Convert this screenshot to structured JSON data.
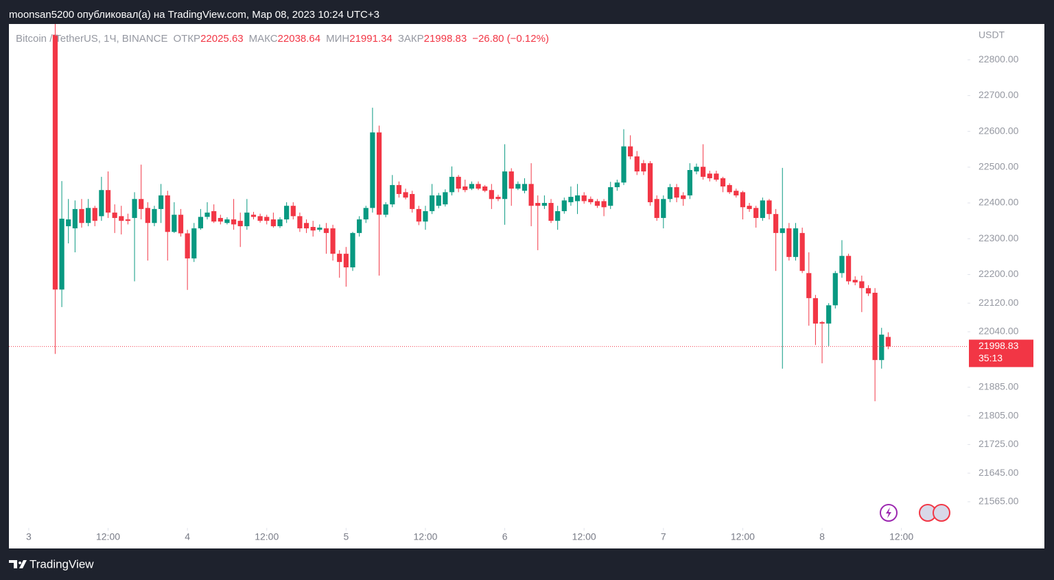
{
  "header": {
    "text": "moonsan5200 опубликовал(а) на TradingView.com, Мар 08, 2023 10:24 UTC+3"
  },
  "footer": {
    "brand": "TradingView"
  },
  "chart_data": {
    "type": "candlestick",
    "title": "Bitcoin / TetherUS, 1Ч, BINANCE",
    "ohlc_labels": {
      "open": "ОТКР",
      "high": "МАКС",
      "low": "МИН",
      "close": "ЗАКР"
    },
    "change_label": "−26.80 (−0.12%)",
    "y_unit": "USDT",
    "countdown": "35:13",
    "up_color": "#089981",
    "down_color": "#f23645",
    "xlim": [
      -3,
      142
    ],
    "xticks": [
      {
        "value": 0,
        "label": "3"
      },
      {
        "value": 12,
        "label": "12:00"
      },
      {
        "value": 24,
        "label": "4"
      },
      {
        "value": 36,
        "label": "12:00"
      },
      {
        "value": 48,
        "label": "5"
      },
      {
        "value": 60,
        "label": "12:00"
      },
      {
        "value": 72,
        "label": "6"
      },
      {
        "value": 84,
        "label": "12:00"
      },
      {
        "value": 96,
        "label": "7"
      },
      {
        "value": 108,
        "label": "12:00"
      },
      {
        "value": 120,
        "label": "8"
      },
      {
        "value": 132,
        "label": "12:00"
      }
    ],
    "ylim": [
      21492,
      22900
    ],
    "yticks": [
      {
        "value": 22800,
        "label": "22800.00"
      },
      {
        "value": 22700,
        "label": "22700.00"
      },
      {
        "value": 22600,
        "label": "22600.00"
      },
      {
        "value": 22500,
        "label": "22500.00"
      },
      {
        "value": 22400,
        "label": "22400.00"
      },
      {
        "value": 22300,
        "label": "22300.00"
      },
      {
        "value": 22200,
        "label": "22200.00"
      },
      {
        "value": 22120,
        "label": "22120.00"
      },
      {
        "value": 22040,
        "label": "22040.00"
      },
      {
        "value": 21885,
        "label": "21885.00"
      },
      {
        "value": 21805,
        "label": "21805.00"
      },
      {
        "value": 21725,
        "label": "21725.00"
      },
      {
        "value": 21645,
        "label": "21645.00"
      },
      {
        "value": 21565,
        "label": "21565.00"
      }
    ],
    "x": [
      4,
      5,
      6,
      7,
      8,
      9,
      10,
      11,
      12,
      13,
      14,
      15,
      16,
      17,
      18,
      19,
      20,
      21,
      22,
      23,
      24,
      25,
      26,
      27,
      28,
      29,
      30,
      31,
      32,
      33,
      34,
      35,
      36,
      37,
      38,
      39,
      40,
      41,
      42,
      43,
      44,
      45,
      46,
      47,
      48,
      49,
      50,
      51,
      52,
      53,
      54,
      55,
      56,
      57,
      58,
      59,
      60,
      61,
      62,
      63,
      64,
      65,
      66,
      67,
      68,
      69,
      70,
      71,
      72,
      73,
      74,
      75,
      76,
      77,
      78,
      79,
      80,
      81,
      82,
      83,
      84,
      85,
      86,
      87,
      88,
      89,
      90,
      91,
      92,
      93,
      94,
      95,
      96,
      97,
      98,
      99,
      100,
      101,
      102,
      103,
      104,
      105,
      106,
      107,
      108,
      109,
      110,
      111,
      112,
      113,
      114,
      115,
      116,
      117,
      118,
      119,
      120,
      121,
      122,
      123,
      124,
      125,
      126,
      127,
      128,
      129,
      130
    ],
    "open": [
      22870,
      22158,
      22335,
      22329,
      22383,
      22344,
      22386,
      22363,
      22436,
      22373,
      22363,
      22354,
      22358,
      22411,
      22386,
      22344,
      22383,
      22421,
      22319,
      22367,
      22315,
      22245,
      22329,
      22361,
      22377,
      22358,
      22344,
      22354,
      22350,
      22335,
      22367,
      22363,
      22361,
      22354,
      22335,
      22354,
      22392,
      22363,
      22344,
      22333,
      22325,
      22329,
      22329,
      22258,
      22258,
      22220,
      22316,
      22354,
      22386,
      22597,
      22367,
      22396,
      22450,
      22430,
      22425,
      22383,
      22348,
      22377,
      22392,
      22396,
      22430,
      22473,
      22446,
      22440,
      22453,
      22446,
      22436,
      22417,
      22411,
      22488,
      22440,
      22434,
      22453,
      22400,
      22392,
      22400,
      22350,
      22377,
      22402,
      22405,
      22421,
      22411,
      22405,
      22405,
      22392,
      22444,
      22457,
      22558,
      22530,
      22511,
      22511,
      22411,
      22358,
      22411,
      22444,
      22421,
      22421,
      22488,
      22501,
      22482,
      22482,
      22469,
      22450,
      22434,
      22430,
      22392,
      22386,
      22358,
      22407,
      22369,
      22316,
      22329,
      22249,
      22316,
      22204,
      22134,
      22067,
      22063,
      22114,
      22204,
      22252,
      22185,
      22181,
      22162,
      22149,
      21961,
      22025.63
    ],
    "high": [
      22950,
      22461,
      22411,
      22407,
      22411,
      22411,
      22392,
      22473,
      22488,
      22396,
      22392,
      22370,
      22430,
      22507,
      22402,
      22392,
      22453,
      22434,
      22402,
      22383,
      22325,
      22344,
      22383,
      22402,
      22396,
      22367,
      22360,
      22411,
      22373,
      22411,
      22375,
      22370,
      22367,
      22373,
      22360,
      22402,
      22402,
      22373,
      22354,
      22350,
      22340,
      22344,
      22339,
      22268,
      22277,
      22319,
      22363,
      22392,
      22666,
      22616,
      22402,
      22478,
      22460,
      22440,
      22434,
      22392,
      22392,
      22453,
      22428,
      22438,
      22502,
      22478,
      22465,
      22460,
      22460,
      22450,
      22453,
      22423,
      22564,
      22497,
      22460,
      22469,
      22511,
      22421,
      22421,
      22411,
      22392,
      22415,
      22446,
      22453,
      22430,
      22418,
      22411,
      22411,
      22459,
      22465,
      22606,
      22589,
      22545,
      22520,
      22517,
      22421,
      22421,
      22453,
      22453,
      22430,
      22511,
      22510,
      22564,
      22490,
      22490,
      22473,
      22455,
      22440,
      22434,
      22400,
      22392,
      22415,
      22411,
      22383,
      22498,
      22344,
      22344,
      22331,
      22262,
      22143,
      22070,
      22120,
      22210,
      22296,
      22258,
      22195,
      22197,
      22170,
      22162,
      22051,
      22038.64
    ],
    "low": [
      21978,
      22109,
      22287,
      22262,
      22331,
      22335,
      22335,
      22350,
      22358,
      22316,
      22312,
      22340,
      22181,
      22354,
      22239,
      22335,
      22344,
      22239,
      22316,
      22306,
      22157,
      22235,
      22325,
      22354,
      22344,
      22340,
      22340,
      22325,
      22277,
      22325,
      22354,
      22345,
      22340,
      22331,
      22330,
      22344,
      22354,
      22319,
      22316,
      22306,
      22320,
      22258,
      22239,
      22191,
      22166,
      22210,
      22306,
      22344,
      22373,
      22197,
      22360,
      22388,
      22415,
      22410,
      22373,
      22338,
      22325,
      22369,
      22385,
      22390,
      22421,
      22430,
      22430,
      22436,
      22436,
      22430,
      22383,
      22405,
      22339,
      22392,
      22436,
      22427,
      22335,
      22268,
      22383,
      22344,
      22325,
      22370,
      22392,
      22369,
      22398,
      22396,
      22386,
      22363,
      22383,
      22434,
      22450,
      22522,
      22478,
      22478,
      22392,
      22350,
      22329,
      22402,
      22402,
      22392,
      22411,
      22480,
      22465,
      22460,
      22460,
      22430,
      22425,
      22415,
      22354,
      22375,
      22331,
      22350,
      22354,
      22210,
      21937,
      22239,
      22239,
      22204,
      22057,
      22003,
      21952,
      22000,
      22105,
      22191,
      22172,
      22170,
      22095,
      22140,
      21846,
      21937,
      21991.34
    ],
    "close": [
      22158,
      22356,
      22354,
      22383,
      22344,
      22386,
      22350,
      22436,
      22373,
      22358,
      22350,
      22350,
      22411,
      22383,
      22344,
      22383,
      22421,
      22319,
      22367,
      22315,
      22245,
      22329,
      22361,
      22373,
      22348,
      22348,
      22354,
      22340,
      22335,
      22373,
      22361,
      22350,
      22350,
      22335,
      22354,
      22392,
      22363,
      22329,
      22329,
      22323,
      22331,
      22316,
      22258,
      22235,
      22220,
      22316,
      22354,
      22386,
      22597,
      22367,
      22396,
      22450,
      22425,
      22415,
      22383,
      22348,
      22377,
      22421,
      22421,
      22430,
      22473,
      22440,
      22436,
      22453,
      22440,
      22434,
      22411,
      22411,
      22488,
      22440,
      22453,
      22453,
      22392,
      22392,
      22400,
      22350,
      22377,
      22407,
      22417,
      22421,
      22405,
      22402,
      22392,
      22388,
      22444,
      22457,
      22558,
      22530,
      22488,
      22488,
      22402,
      22358,
      22411,
      22444,
      22415,
      22411,
      22492,
      22501,
      22473,
      22469,
      22465,
      22446,
      22430,
      22421,
      22388,
      22383,
      22358,
      22407,
      22369,
      22316,
      22329,
      22249,
      22329,
      22210,
      22134,
      22063,
      22063,
      22114,
      22204,
      22252,
      22181,
      22178,
      22162,
      22147,
      21961,
      22032,
      21998.83
    ]
  }
}
